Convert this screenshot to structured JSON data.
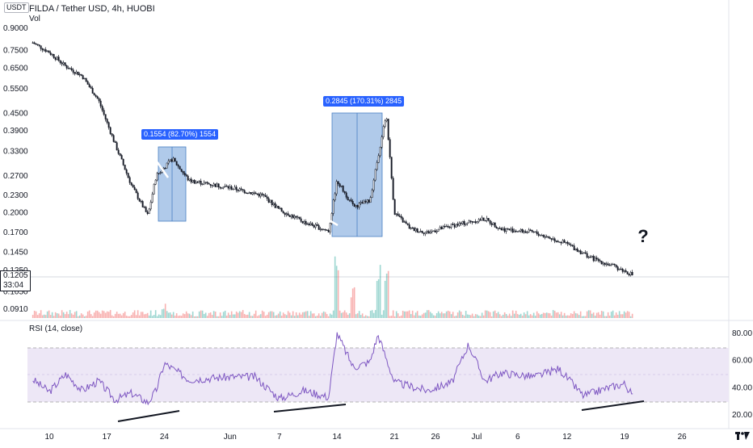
{
  "header": {
    "currency_badge": "USDT",
    "symbol_line": "FILDA / Tether USD, 4h, HUOBI",
    "volume_label": "Vol"
  },
  "price_tag": {
    "value": "0.1205",
    "countdown": "33:04"
  },
  "rsi_label": "RSI (14, close)",
  "question_mark": "?",
  "colors": {
    "candle": "#131722",
    "vol_up": "#26a69a",
    "vol_down": "#ef5350",
    "rsi_line": "#7e57c2",
    "rsi_band": "#ede7f6",
    "measure_box": "#6f9fd8",
    "badge_bg": "#2962ff",
    "white_trend": "#ffffff",
    "black_trend": "#131722"
  },
  "chart_data": [
    {
      "type": "candlestick",
      "title": "FILDA / Tether USD, 4h, HUOBI",
      "log_scale": true,
      "y_ticks": [
        "0.9000",
        "0.7500",
        "0.6500",
        "0.5500",
        "0.4500",
        "0.3900",
        "0.3300",
        "0.2700",
        "0.2300",
        "0.2000",
        "0.1700",
        "0.1450",
        "0.1250",
        "0.1050",
        "0.0910"
      ],
      "x_ticks": [
        "10",
        "17",
        "24",
        "Jun",
        "7",
        "14",
        "21",
        "26",
        "Jul",
        "6",
        "12",
        "19",
        "26"
      ],
      "close_path": [
        {
          "x": "May 8",
          "y": 0.8
        },
        {
          "x": "May 10",
          "y": 0.74
        },
        {
          "x": "May 12",
          "y": 0.66
        },
        {
          "x": "May 14",
          "y": 0.61
        },
        {
          "x": "May 16",
          "y": 0.5
        },
        {
          "x": "May 18",
          "y": 0.35
        },
        {
          "x": "May 20",
          "y": 0.25
        },
        {
          "x": "May 22",
          "y": 0.195
        },
        {
          "x": "May 23",
          "y": 0.27
        },
        {
          "x": "May 25",
          "y": 0.31
        },
        {
          "x": "May 27",
          "y": 0.26
        },
        {
          "x": "Jun 1",
          "y": 0.245
        },
        {
          "x": "Jun 5",
          "y": 0.23
        },
        {
          "x": "Jun 7",
          "y": 0.205
        },
        {
          "x": "Jun 10",
          "y": 0.185
        },
        {
          "x": "Jun 13",
          "y": 0.172
        },
        {
          "x": "Jun 14",
          "y": 0.26
        },
        {
          "x": "Jun 16",
          "y": 0.21
        },
        {
          "x": "Jun 18",
          "y": 0.22
        },
        {
          "x": "Jun 20",
          "y": 0.45
        },
        {
          "x": "Jun 21",
          "y": 0.2
        },
        {
          "x": "Jun 23",
          "y": 0.175
        },
        {
          "x": "Jun 25",
          "y": 0.17
        },
        {
          "x": "Jun 28",
          "y": 0.18
        },
        {
          "x": "Jul 2",
          "y": 0.19
        },
        {
          "x": "Jul 4",
          "y": 0.175
        },
        {
          "x": "Jul 8",
          "y": 0.17
        },
        {
          "x": "Jul 12",
          "y": 0.155
        },
        {
          "x": "Jul 15",
          "y": 0.138
        },
        {
          "x": "Jul 18",
          "y": 0.128
        },
        {
          "x": "Jul 20",
          "y": 0.1205
        }
      ],
      "last_price": 0.1205,
      "measures": [
        {
          "label": "0.1554 (82.70%) 1554",
          "from": 0.19,
          "to": 0.345
        },
        {
          "label": "0.2845 (170.31%) 2845",
          "from": 0.167,
          "to": 0.4515
        }
      ],
      "annotations": [
        "?"
      ]
    },
    {
      "type": "line",
      "title": "RSI (14, close)",
      "y_ticks": [
        "80.00",
        "60.00",
        "40.00",
        "20.00"
      ],
      "ylim": [
        20,
        85
      ],
      "band": [
        30,
        70
      ],
      "series": [
        {
          "name": "RSI (14, close)",
          "values": [
            {
              "x": "May 8",
              "y": 46
            },
            {
              "x": "May 10",
              "y": 37
            },
            {
              "x": "May 12",
              "y": 50
            },
            {
              "x": "May 14",
              "y": 38
            },
            {
              "x": "May 16",
              "y": 45
            },
            {
              "x": "May 18",
              "y": 31
            },
            {
              "x": "May 20",
              "y": 36
            },
            {
              "x": "May 22",
              "y": 29
            },
            {
              "x": "May 23",
              "y": 38
            },
            {
              "x": "May 24",
              "y": 58
            },
            {
              "x": "May 27",
              "y": 46
            },
            {
              "x": "Jun 1",
              "y": 48
            },
            {
              "x": "Jun 4",
              "y": 48
            },
            {
              "x": "Jun 7",
              "y": 32
            },
            {
              "x": "Jun 10",
              "y": 38
            },
            {
              "x": "Jun 13",
              "y": 33
            },
            {
              "x": "Jun 14",
              "y": 80
            },
            {
              "x": "Jun 16",
              "y": 55
            },
            {
              "x": "Jun 18",
              "y": 59
            },
            {
              "x": "Jun 19",
              "y": 79
            },
            {
              "x": "Jun 21",
              "y": 44
            },
            {
              "x": "Jun 25",
              "y": 38
            },
            {
              "x": "Jun 28",
              "y": 44
            },
            {
              "x": "Jun 30",
              "y": 72
            },
            {
              "x": "Jul 2",
              "y": 45
            },
            {
              "x": "Jul 4",
              "y": 51
            },
            {
              "x": "Jul 8",
              "y": 48
            },
            {
              "x": "Jul 11",
              "y": 54
            },
            {
              "x": "Jul 14",
              "y": 34
            },
            {
              "x": "Jul 17",
              "y": 40
            },
            {
              "x": "Jul 19",
              "y": 43
            },
            {
              "x": "Jul 20",
              "y": 34
            }
          ]
        }
      ]
    }
  ]
}
